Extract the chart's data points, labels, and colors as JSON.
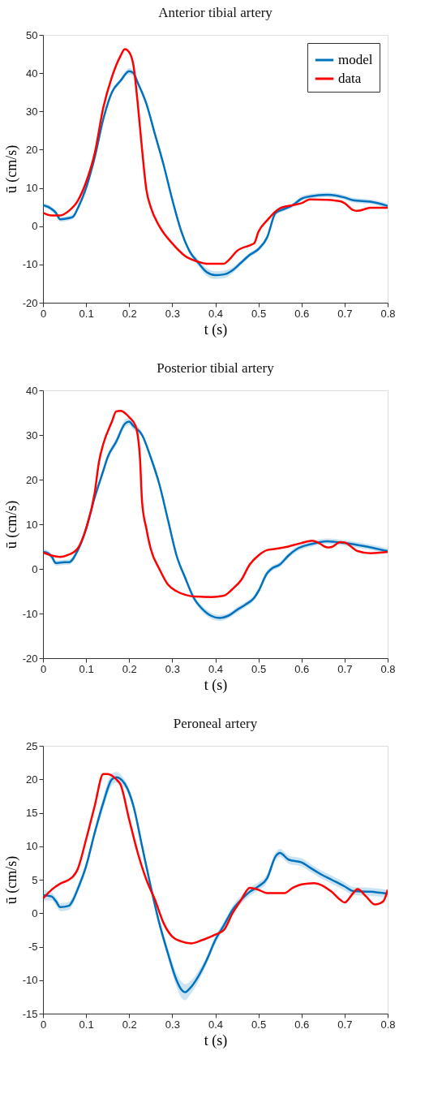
{
  "chart_data": [
    {
      "type": "line",
      "title": "Anterior tibial artery",
      "xlabel": "t (s)",
      "ylabel": "ū (cm/s)",
      "xlim": [
        0,
        0.8
      ],
      "ylim": [
        -20,
        50
      ],
      "xticks": [
        0,
        0.1,
        0.2,
        0.3,
        0.4,
        0.5,
        0.6,
        0.7,
        0.8
      ],
      "yticks": [
        -20,
        -10,
        0,
        10,
        20,
        30,
        40,
        50
      ],
      "grid": false,
      "legend": "top right",
      "line_style": "solid",
      "series": [
        {
          "name": "model",
          "color": "#0072bd",
          "x": [
            0,
            0.02,
            0.03,
            0.04,
            0.06,
            0.07,
            0.08,
            0.1,
            0.12,
            0.14,
            0.16,
            0.18,
            0.2,
            0.21,
            0.22,
            0.24,
            0.26,
            0.28,
            0.3,
            0.32,
            0.34,
            0.36,
            0.38,
            0.4,
            0.42,
            0.44,
            0.46,
            0.48,
            0.5,
            0.52,
            0.54,
            0.56,
            0.58,
            0.6,
            0.62,
            0.66,
            0.68,
            0.7,
            0.72,
            0.76,
            0.8
          ],
          "values": [
            5.5,
            4.5,
            3.5,
            1.8,
            2.1,
            2.5,
            4.5,
            10,
            18,
            28,
            35,
            38,
            40.5,
            40,
            37.5,
            32,
            24,
            16,
            7,
            -1,
            -6.5,
            -9.5,
            -12,
            -12.8,
            -12.6,
            -11.5,
            -9.5,
            -7.5,
            -6,
            -3,
            3.5,
            4.5,
            5.5,
            7.2,
            7.8,
            8.2,
            8,
            7.5,
            6.8,
            6.4,
            5.3
          ],
          "lower": [
            4.9,
            3.9,
            2.9,
            1.2,
            1.5,
            1.9,
            3.9,
            9.4,
            17.4,
            27.4,
            34.4,
            37.4,
            39.7,
            39.2,
            36.9,
            31.4,
            23.4,
            15.4,
            6.4,
            -1.6,
            -7.1,
            -10.3,
            -13,
            -13.8,
            -13.6,
            -12.3,
            -10.1,
            -8.1,
            -6.6,
            -3.6,
            2.9,
            3.9,
            4.9,
            6.6,
            7.2,
            7.6,
            7.4,
            6.9,
            6.2,
            5.8,
            4.7
          ],
          "upper": [
            6.1,
            5.1,
            4.1,
            2.4,
            2.7,
            3.1,
            5.1,
            10.6,
            18.6,
            28.6,
            35.6,
            38.6,
            41.3,
            40.8,
            38.1,
            32.6,
            24.6,
            16.6,
            7.6,
            -0.4,
            -5.9,
            -8.7,
            -11,
            -11.8,
            -11.6,
            -10.7,
            -8.9,
            -6.9,
            -5.4,
            -2.4,
            4.1,
            5.1,
            6.1,
            7.8,
            8.4,
            8.8,
            8.6,
            8.1,
            7.4,
            7,
            5.9
          ]
        },
        {
          "name": "data",
          "color": "#ff0000",
          "x": [
            0,
            0.02,
            0.04,
            0.06,
            0.08,
            0.1,
            0.12,
            0.14,
            0.16,
            0.18,
            0.19,
            0.2,
            0.21,
            0.22,
            0.23,
            0.24,
            0.25,
            0.27,
            0.3,
            0.33,
            0.36,
            0.38,
            0.42,
            0.43,
            0.45,
            0.48,
            0.49,
            0.5,
            0.52,
            0.55,
            0.58,
            0.6,
            0.62,
            0.66,
            0.69,
            0.7,
            0.72,
            0.73,
            0.76,
            0.8
          ],
          "values": [
            3.5,
            2.8,
            2.8,
            4,
            6.5,
            11.5,
            19,
            31,
            39,
            44.5,
            46.3,
            45.5,
            42,
            32,
            20,
            9.5,
            5,
            0,
            -4.5,
            -7.8,
            -9.3,
            -9.8,
            -9.8,
            -9,
            -6.5,
            -5,
            -4.5,
            -1.5,
            1.5,
            4.7,
            5.5,
            6,
            7,
            6.9,
            6.5,
            6,
            4.2,
            4,
            4.8,
            4.8
          ]
        }
      ]
    },
    {
      "type": "line",
      "title": "Posterior tibial artery",
      "xlabel": "t (s)",
      "ylabel": "ū (cm/s)",
      "xlim": [
        0,
        0.8
      ],
      "ylim": [
        -20,
        40
      ],
      "xticks": [
        0,
        0.1,
        0.2,
        0.3,
        0.4,
        0.5,
        0.6,
        0.7,
        0.8
      ],
      "yticks": [
        -20,
        -10,
        0,
        10,
        20,
        30,
        40
      ],
      "grid": false,
      "legend": false,
      "line_style": "solid",
      "series": [
        {
          "color": "#0072bd",
          "x": [
            0,
            0.01,
            0.02,
            0.03,
            0.05,
            0.06,
            0.08,
            0.1,
            0.12,
            0.14,
            0.15,
            0.17,
            0.19,
            0.2,
            0.21,
            0.23,
            0.25,
            0.27,
            0.29,
            0.31,
            0.33,
            0.35,
            0.37,
            0.39,
            0.41,
            0.43,
            0.45,
            0.47,
            0.49,
            0.5,
            0.52,
            0.53,
            0.55,
            0.57,
            0.59,
            0.62,
            0.66,
            0.7,
            0.74,
            0.8
          ],
          "values": [
            3.8,
            3.6,
            2.8,
            1.3,
            1.5,
            1.5,
            4,
            9,
            16,
            22,
            25,
            28.5,
            32.5,
            33,
            32,
            30,
            25,
            19,
            11,
            3,
            -2,
            -6.5,
            -9,
            -10.5,
            -11,
            -10.5,
            -9.2,
            -8,
            -6.5,
            -5,
            -1,
            0,
            1,
            3,
            4.5,
            5.5,
            6.2,
            5.8,
            5.2,
            4
          ],
          "lower": [
            3.2,
            3,
            2.2,
            0.7,
            0.9,
            0.9,
            3.4,
            8.4,
            15.4,
            21.4,
            24.4,
            27.7,
            31.7,
            32.2,
            31.2,
            29.4,
            24.4,
            18.4,
            10.4,
            2.4,
            -2.6,
            -7.1,
            -9.7,
            -11.2,
            -11.7,
            -11.1,
            -9.8,
            -8.6,
            -7.1,
            -5.6,
            -1.6,
            -0.6,
            0.4,
            2.4,
            3.9,
            4.9,
            5.6,
            5.2,
            4.6,
            3.4
          ],
          "upper": [
            4.4,
            4.2,
            3.4,
            1.9,
            2.1,
            2.1,
            4.6,
            9.6,
            16.6,
            22.6,
            25.6,
            29.3,
            33.3,
            33.8,
            32.8,
            30.6,
            25.6,
            19.6,
            11.6,
            3.6,
            -1.4,
            -5.9,
            -8.3,
            -9.8,
            -10.3,
            -9.9,
            -8.6,
            -7.4,
            -5.9,
            -4.4,
            -0.4,
            0.6,
            1.6,
            3.6,
            5.1,
            6.1,
            6.8,
            6.4,
            5.8,
            4.6
          ]
        },
        {
          "color": "#ff0000",
          "x": [
            0,
            0.02,
            0.04,
            0.06,
            0.08,
            0.1,
            0.12,
            0.13,
            0.14,
            0.16,
            0.17,
            0.18,
            0.2,
            0.215,
            0.225,
            0.23,
            0.24,
            0.25,
            0.27,
            0.29,
            0.31,
            0.33,
            0.35,
            0.39,
            0.42,
            0.44,
            0.46,
            0.48,
            0.5,
            0.52,
            0.54,
            0.56,
            0.6,
            0.625,
            0.64,
            0.66,
            0.67,
            0.69,
            0.7,
            0.73,
            0.76,
            0.8
          ],
          "values": [
            3.7,
            3,
            2.7,
            3.2,
            4.5,
            9,
            17,
            24,
            28,
            33,
            35.3,
            35.4,
            34,
            32,
            25,
            15,
            9,
            4.5,
            0,
            -3.5,
            -5,
            -5.8,
            -6.2,
            -6.3,
            -6,
            -4.5,
            -2.5,
            1,
            3,
            4.2,
            4.5,
            4.8,
            5.8,
            6.3,
            5.8,
            4.8,
            4.9,
            6,
            5.9,
            4,
            3.5,
            3.8
          ]
        }
      ]
    },
    {
      "type": "line",
      "title": "Peroneal artery",
      "xlabel": "t (s)",
      "ylabel": "ū (cm/s)",
      "xlim": [
        0,
        0.8
      ],
      "ylim": [
        -15,
        25
      ],
      "xticks": [
        0,
        0.1,
        0.2,
        0.3,
        0.4,
        0.5,
        0.6,
        0.7,
        0.8
      ],
      "yticks": [
        -15,
        -10,
        -5,
        0,
        5,
        10,
        15,
        20,
        25
      ],
      "grid": false,
      "legend": false,
      "line_style": "solid",
      "series": [
        {
          "color": "#0072bd",
          "x": [
            0,
            0.02,
            0.03,
            0.04,
            0.06,
            0.07,
            0.08,
            0.1,
            0.12,
            0.14,
            0.16,
            0.17,
            0.19,
            0.2,
            0.21,
            0.23,
            0.25,
            0.27,
            0.29,
            0.31,
            0.32,
            0.33,
            0.34,
            0.36,
            0.38,
            0.4,
            0.42,
            0.44,
            0.46,
            0.48,
            0.5,
            0.52,
            0.54,
            0.55,
            0.57,
            0.6,
            0.62,
            0.64,
            0.67,
            0.7,
            0.72,
            0.76,
            0.8
          ],
          "values": [
            2.7,
            2.5,
            1.8,
            0.9,
            1.1,
            2,
            3.5,
            7,
            12,
            16.5,
            20,
            20.3,
            19.3,
            18,
            16,
            10,
            4,
            -1.5,
            -6,
            -10,
            -11.3,
            -11.8,
            -11.3,
            -9.5,
            -7,
            -4,
            -1.8,
            0.5,
            2,
            3.2,
            4,
            5.2,
            8.5,
            9,
            8,
            7.6,
            6.8,
            6,
            5,
            4,
            3.3,
            3.2,
            2.9
          ],
          "lower": [
            1.9,
            1.9,
            1.2,
            0.3,
            0.5,
            1.4,
            2.9,
            6.4,
            11.4,
            15.6,
            19.1,
            19.5,
            18.7,
            17.4,
            15.4,
            9.4,
            3.4,
            -2.1,
            -6.8,
            -11,
            -12.5,
            -13,
            -12.3,
            -10.3,
            -7.6,
            -4.6,
            -2.4,
            -0.1,
            1.4,
            2.6,
            3.4,
            4.6,
            7.9,
            8.4,
            7.4,
            7,
            6.2,
            5.4,
            4.4,
            3.4,
            2.7,
            2.6,
            2.3
          ],
          "upper": [
            3.5,
            3.1,
            2.4,
            1.5,
            1.7,
            2.6,
            4.1,
            7.6,
            12.6,
            17.4,
            20.9,
            21.1,
            19.9,
            18.6,
            16.6,
            10.6,
            4.6,
            -0.9,
            -5.2,
            -9,
            -10.1,
            -10.6,
            -10.3,
            -8.7,
            -6.4,
            -3.4,
            -1.2,
            1.1,
            2.6,
            3.8,
            4.6,
            5.8,
            9.1,
            9.6,
            8.6,
            8.2,
            7.4,
            6.6,
            5.6,
            4.6,
            3.9,
            3.8,
            3.5
          ]
        },
        {
          "color": "#ff0000",
          "x": [
            0,
            0.02,
            0.04,
            0.06,
            0.07,
            0.08,
            0.1,
            0.12,
            0.14,
            0.15,
            0.17,
            0.18,
            0.2,
            0.22,
            0.24,
            0.26,
            0.28,
            0.3,
            0.32,
            0.345,
            0.37,
            0.4,
            0.42,
            0.44,
            0.46,
            0.48,
            0.5,
            0.52,
            0.56,
            0.58,
            0.6,
            0.63,
            0.67,
            0.69,
            0.7,
            0.72,
            0.73,
            0.75,
            0.77,
            0.79,
            0.8
          ],
          "values": [
            2.2,
            3.5,
            4.4,
            5,
            5.5,
            6.5,
            11,
            16,
            20.8,
            20.8,
            20,
            19.2,
            14,
            9,
            5,
            2,
            -1.5,
            -3.5,
            -4.2,
            -4.5,
            -4,
            -3.2,
            -2.5,
            0,
            2,
            3.8,
            3.5,
            3,
            3,
            3.8,
            4.3,
            4.5,
            3.2,
            2,
            1.6,
            3,
            3.6,
            2.5,
            1.3,
            1.8,
            3.5
          ]
        }
      ]
    }
  ]
}
